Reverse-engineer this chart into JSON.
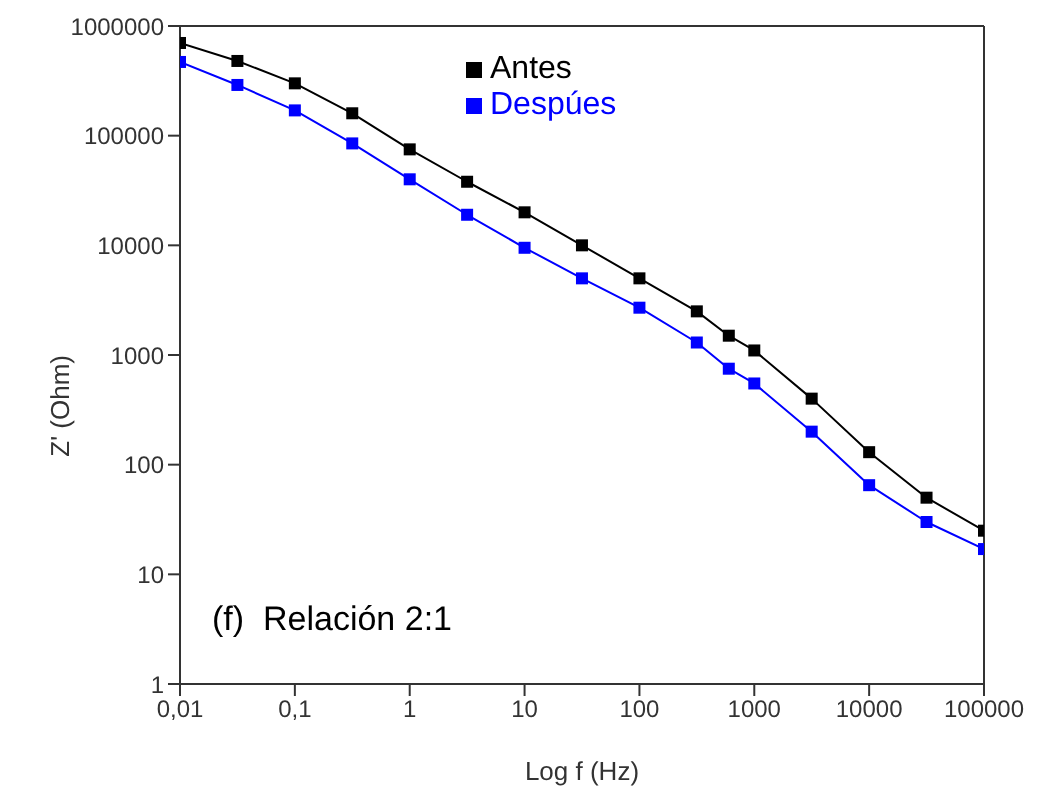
{
  "chart_data": {
    "type": "line",
    "xlabel": "Log f (Hz)",
    "ylabel": "Z' (Ohm)",
    "log": "xy",
    "x": [
      0.01,
      0.0316,
      0.1,
      0.316,
      1,
      3.16,
      10,
      31.6,
      100,
      316,
      600,
      1000,
      3160,
      10000,
      31600,
      100000
    ],
    "series": [
      {
        "name": "Antes",
        "color": "#000000",
        "values": [
          700000,
          480000,
          300000,
          160000,
          75000,
          38000,
          20000,
          10000,
          5000,
          2500,
          1500,
          1100,
          400,
          130,
          50,
          25
        ]
      },
      {
        "name": "Despúes",
        "color": "#0000ff",
        "values": [
          470000,
          290000,
          170000,
          85000,
          40000,
          19000,
          9500,
          5000,
          2700,
          1300,
          750,
          550,
          200,
          65,
          30,
          17
        ]
      }
    ],
    "xlim": [
      0.01,
      100000
    ],
    "xticks": [
      {
        "value": 0.01,
        "label": "0,01"
      },
      {
        "value": 0.1,
        "label": "0,1"
      },
      1,
      10,
      100,
      1000,
      10000,
      100000
    ],
    "ylim": [
      1,
      1000000
    ],
    "yticks": [
      1,
      10,
      100,
      1000,
      10000,
      100000,
      1000000
    ],
    "grid": false,
    "legend": "top",
    "marker": "square",
    "line_style": "solid",
    "annotations": [
      "(f)  Relación 2:1"
    ]
  }
}
